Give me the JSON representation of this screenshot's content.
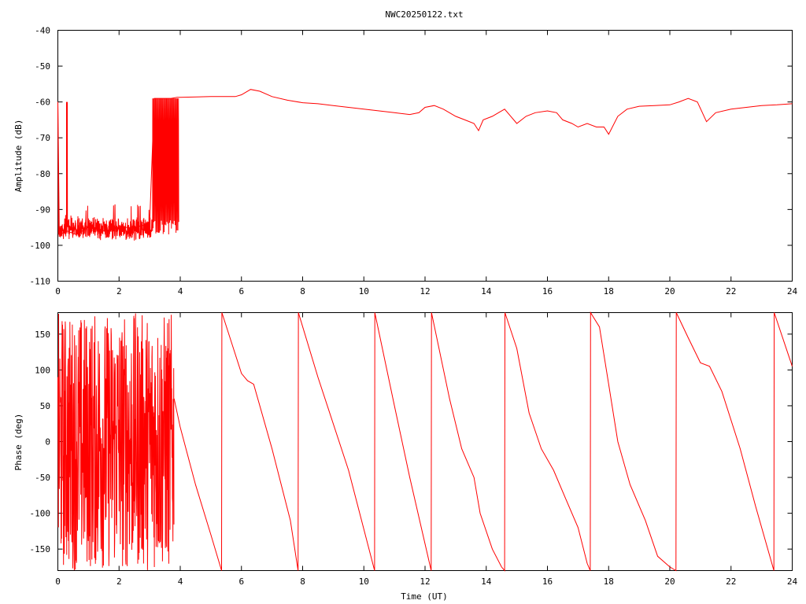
{
  "chart_data": [
    {
      "type": "line",
      "title": "NWC20250122.txt",
      "xlabel": "",
      "ylabel": "Amplitude (dB)",
      "xlim": [
        0,
        24
      ],
      "ylim": [
        -110,
        -40
      ],
      "x_ticks": [
        "0",
        "2",
        "4",
        "6",
        "8",
        "10",
        "12",
        "14",
        "16",
        "18",
        "20",
        "22",
        "24"
      ],
      "y_ticks": [
        "-40",
        "-50",
        "-60",
        "-70",
        "-80",
        "-90",
        "-100",
        "-110"
      ],
      "grid": false,
      "color": "#ff0000",
      "series": [
        {
          "x": [
            0,
            0.05,
            0.3,
            0.6,
            1.0,
            1.5,
            2.0,
            2.5,
            3.0,
            3.15,
            3.3,
            3.5,
            3.7,
            3.9,
            4.0,
            5.0,
            5.8,
            6.0,
            6.3,
            6.6,
            7.0,
            7.5,
            8.0,
            8.5,
            9.0,
            9.5,
            10.0,
            10.5,
            11.0,
            11.5,
            11.8,
            12.0,
            12.3,
            12.6,
            13.0,
            13.3,
            13.6,
            13.75,
            13.9,
            14.2,
            14.4,
            14.6,
            14.8,
            15.0,
            15.3,
            15.6,
            16.0,
            16.3,
            16.5,
            16.8,
            17.0,
            17.3,
            17.6,
            17.85,
            18.0,
            18.3,
            18.6,
            19.0,
            19.5,
            20.0,
            20.3,
            20.6,
            20.9,
            21.2,
            21.5,
            22.0,
            22.5,
            23.0,
            23.5,
            24.0
          ],
          "y": [
            -60,
            -97,
            -96,
            -97,
            -95,
            -96,
            -95,
            -95,
            -94,
            -59,
            -59,
            -59,
            -59,
            -58.7,
            -58.7,
            -58.5,
            -58.5,
            -58,
            -56.5,
            -57,
            -58.5,
            -59.5,
            -60.2,
            -60.5,
            -61,
            -61.5,
            -62,
            -62.5,
            -63,
            -63.5,
            -63,
            -61.5,
            -61,
            -62,
            -64,
            -65,
            -66,
            -68,
            -65,
            -64,
            -63,
            -62,
            -64,
            -66,
            -64,
            -63,
            -62.5,
            -63,
            -65,
            -66,
            -67,
            -66,
            -67,
            -67,
            -69,
            -64,
            -62,
            -61.2,
            -61,
            -60.8,
            -60,
            -59,
            -60,
            -65.5,
            -63,
            -62,
            -61.5,
            -61,
            -60.8,
            -60.5
          ]
        }
      ]
    },
    {
      "type": "line",
      "title": "",
      "xlabel": "Time (UT)",
      "ylabel": "Phase (deg)",
      "xlim": [
        0,
        24
      ],
      "ylim": [
        -180,
        180
      ],
      "x_ticks": [
        "0",
        "2",
        "4",
        "6",
        "8",
        "10",
        "12",
        "14",
        "16",
        "18",
        "20",
        "22",
        "24"
      ],
      "y_ticks": [
        "150",
        "100",
        "50",
        "0",
        "-50",
        "-100",
        "-150"
      ],
      "grid": false,
      "color": "#ff0000",
      "series": [
        {
          "x": [
            3.8,
            4.0,
            4.5,
            5.0,
            5.35,
            5.36,
            6.0,
            6.2,
            6.4,
            7.0,
            7.6,
            7.85,
            7.86,
            8.5,
            9.5,
            10.35,
            10.36,
            11.0,
            11.5,
            12.2,
            12.21,
            12.8,
            13.2,
            13.6,
            13.8,
            14.2,
            14.5,
            14.6,
            14.61,
            15.0,
            15.4,
            15.8,
            16.2,
            16.6,
            17.0,
            17.3,
            17.4,
            17.41,
            17.7,
            18.0,
            18.3,
            18.7,
            19.2,
            19.6,
            20.0,
            20.2,
            20.21,
            20.6,
            21.0,
            21.3,
            21.7,
            22.3,
            22.8,
            23.4,
            23.41,
            24.0
          ],
          "y": [
            60,
            20,
            -60,
            -130,
            -180,
            180,
            95,
            85,
            80,
            -10,
            -110,
            -180,
            180,
            90,
            -40,
            -180,
            180,
            50,
            -50,
            -180,
            180,
            60,
            -10,
            -50,
            -100,
            -150,
            -175,
            -180,
            180,
            130,
            40,
            -10,
            -40,
            -80,
            -120,
            -170,
            -180,
            180,
            160,
            80,
            0,
            -60,
            -110,
            -160,
            -175,
            -180,
            180,
            145,
            110,
            105,
            70,
            -10,
            -90,
            -180,
            180,
            105
          ]
        }
      ]
    }
  ]
}
